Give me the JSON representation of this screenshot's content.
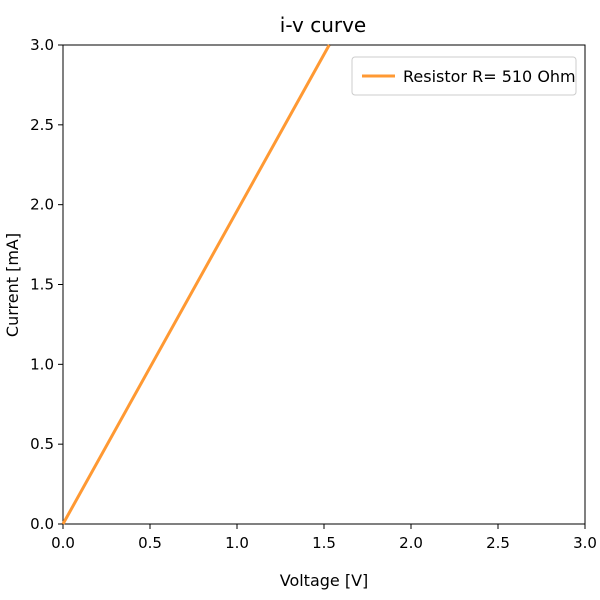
{
  "chart_data": {
    "type": "line",
    "title": "i-v curve",
    "xlabel": "Voltage [V]",
    "ylabel": "Current [mA]",
    "xlim": [
      0.0,
      3.0
    ],
    "ylim": [
      0.0,
      3.0
    ],
    "xticks": [
      "0.0",
      "0.5",
      "1.0",
      "1.5",
      "2.0",
      "2.5",
      "3.0"
    ],
    "yticks": [
      "0.0",
      "0.5",
      "1.0",
      "1.5",
      "2.0",
      "2.5",
      "3.0"
    ],
    "grid": false,
    "legend_position": "top-right",
    "series": [
      {
        "name": "Resistor R= 510 Ohm",
        "color": "#ff9933",
        "x": [
          0.0,
          0.51,
          1.02,
          1.53
        ],
        "y": [
          0.0,
          1.0,
          2.0,
          3.0
        ]
      }
    ]
  }
}
